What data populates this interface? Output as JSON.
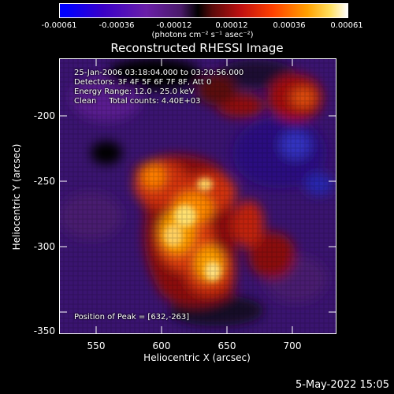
{
  "colorbar": {
    "ticks": [
      "-0.00061",
      "-0.00036",
      "-0.00012",
      "0.00012",
      "0.00036",
      "0.00061"
    ],
    "units": "(photons cm⁻² s⁻¹ asec⁻²)"
  },
  "title": "Reconstructed RHESSI Image",
  "annotations": {
    "time": "25-Jan-2006 03:18:04.000 to 03:20:56.000",
    "detectors": "Detectors: 3F 4F 5F 6F 7F 8F, Att 0",
    "energy": "Energy Range: 12.0 - 25.0 keV",
    "clean": "Clean     Total counts: 4.40E+03",
    "peak": "Position of Peak = [632,-263]"
  },
  "axes": {
    "xlabel": "Heliocentric X (arcsec)",
    "ylabel": "Heliocentric Y (arcsec)",
    "xticks": [
      "550",
      "600",
      "650",
      "700"
    ],
    "yticks": [
      "-200",
      "-250",
      "-300",
      "-350"
    ]
  },
  "timestamp": "5-May-2022 15:05"
}
